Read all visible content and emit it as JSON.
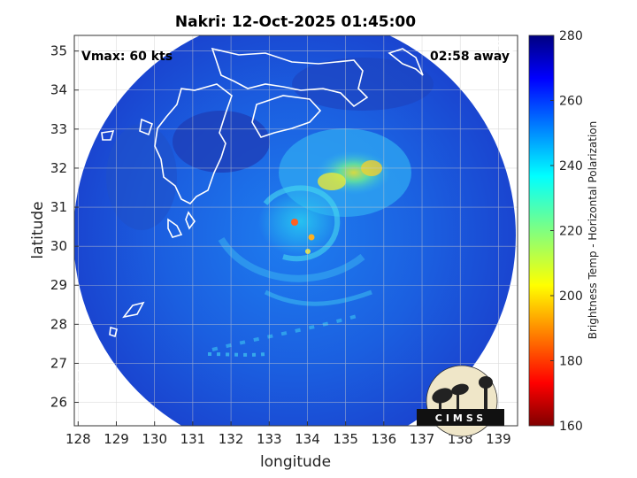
{
  "title": "Nakri: 12-Oct-2025 01:45:00",
  "vmax_label": "Vmax: 60 kts",
  "time_away_label": "02:58 away",
  "xlabel": "longitude",
  "ylabel": "latitude",
  "colorbar": {
    "label": "Brightness Temp - Horizontal Polarization",
    "min": 160,
    "max": 280,
    "ticks": [
      160,
      180,
      200,
      220,
      240,
      260,
      280
    ]
  },
  "logo": {
    "text": "CIMSS"
  },
  "colors": {
    "background_swath": "#1a4fd8",
    "coastline": "#ffffff",
    "land_outside": "#ffffff"
  },
  "chart_data": {
    "type": "heatmap",
    "title": "Nakri: 12-Oct-2025 01:45:00",
    "xlabel": "longitude",
    "ylabel": "latitude",
    "xlim": [
      127.9,
      139.5
    ],
    "ylim": [
      25.4,
      35.4
    ],
    "xticks": [
      128,
      129,
      130,
      131,
      132,
      133,
      134,
      135,
      136,
      137,
      138,
      139
    ],
    "yticks": [
      26,
      27,
      28,
      29,
      30,
      31,
      32,
      33,
      34,
      35
    ],
    "storm_center": {
      "lon": 133.8,
      "lat": 30.4
    },
    "swath_center": {
      "lon": 133.7,
      "lat": 30.1
    },
    "swath_radius_deg": 5.7,
    "color_scale": "jet",
    "value_range": [
      160,
      280
    ],
    "grid": true
  }
}
